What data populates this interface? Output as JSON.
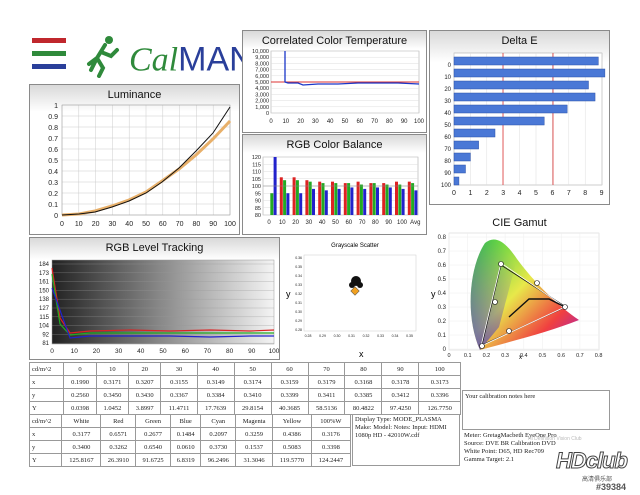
{
  "logo": {
    "text_cal": "Cal",
    "text_man": "MAN",
    "tm": "TM"
  },
  "luminance": {
    "title": "Luminance",
    "y_ticks": [
      "1",
      "0.9",
      "0.8",
      "0.7",
      "0.6",
      "0.5",
      "0.4",
      "0.3",
      "0.2",
      "0.1",
      "0"
    ],
    "x_ticks": [
      "0",
      "10",
      "20",
      "30",
      "40",
      "50",
      "60",
      "70",
      "80",
      "90",
      "100"
    ]
  },
  "cct": {
    "title": "Correlated Color Temperature",
    "y_ticks": [
      "10,000",
      "9,000",
      "8,000",
      "7,000",
      "6,000",
      "5,000",
      "4,000",
      "3,000",
      "2,000",
      "1,000",
      "0"
    ],
    "x_ticks": [
      "0",
      "10",
      "20",
      "30",
      "40",
      "50",
      "60",
      "70",
      "80",
      "90",
      "100"
    ]
  },
  "rgb_balance": {
    "title": "RGB Color Balance",
    "y_ticks": [
      "120",
      "115",
      "110",
      "105",
      "100",
      "95",
      "90",
      "85",
      "80"
    ],
    "x_ticks": [
      "0",
      "10",
      "20",
      "30",
      "40",
      "50",
      "60",
      "70",
      "80",
      "90",
      "100",
      "Avg"
    ]
  },
  "delta_e": {
    "title": "Delta E",
    "y_ticks": [
      "100",
      "90",
      "80",
      "70",
      "60",
      "50",
      "40",
      "30",
      "20",
      "10",
      "0"
    ],
    "x_ticks": [
      "0",
      "1",
      "2",
      "3",
      "4",
      "5",
      "6",
      "7",
      "8",
      "9"
    ]
  },
  "level_tracking": {
    "title": "RGB Level Tracking",
    "y_ticks": [
      "184",
      "173",
      "161",
      "150",
      "138",
      "127",
      "115",
      "104",
      "92",
      "81"
    ],
    "x_ticks": [
      "0",
      "10",
      "20",
      "30",
      "40",
      "50",
      "60",
      "70",
      "80",
      "90",
      "100"
    ]
  },
  "grayscale_scatter": {
    "title": "Grayscale Scatter",
    "x_axis": "x",
    "y_axis": "y",
    "x_ticks": [
      "0.28",
      "0.29",
      "0.30",
      "0.31",
      "0.32",
      "0.33",
      "0.34",
      "0.35"
    ],
    "y_ticks": [
      "0.36",
      "0.35",
      "0.34",
      "0.33",
      "0.32",
      "0.31",
      "0.30",
      "0.29",
      "0.28"
    ]
  },
  "cie_gamut": {
    "title": "CIE Gamut",
    "x_axis": "x",
    "y_axis": "y",
    "y_ticks": [
      "0.8",
      "0.7",
      "0.6",
      "0.5",
      "0.4",
      "0.3",
      "0.2",
      "0.1",
      "0"
    ],
    "x_ticks": [
      "0",
      "0.1",
      "0.2",
      "0.3",
      "0.4",
      "0.5",
      "0.6",
      "0.7",
      "0.8"
    ]
  },
  "table1": {
    "headers": [
      "cd/m^2",
      "0",
      "10",
      "20",
      "30",
      "40",
      "50",
      "60",
      "70",
      "80",
      "90",
      "100"
    ],
    "rows": [
      [
        "x",
        "0.1990",
        "0.3171",
        "0.3207",
        "0.3155",
        "0.3149",
        "0.3174",
        "0.3159",
        "0.3179",
        "0.3168",
        "0.3178",
        "0.3173"
      ],
      [
        "y",
        "0.2560",
        "0.3450",
        "0.3430",
        "0.3367",
        "0.3384",
        "0.3410",
        "0.3399",
        "0.3411",
        "0.3385",
        "0.3412",
        "0.3396"
      ],
      [
        "Y",
        "0.0398",
        "1.0452",
        "3.8997",
        "11.4711",
        "17.7639",
        "29.8154",
        "40.3685",
        "58.5136",
        "80.4822",
        "97.4250",
        "126.7750"
      ]
    ]
  },
  "table2": {
    "headers": [
      "cd/m^2",
      "White",
      "Red",
      "Green",
      "Blue",
      "Cyan",
      "Magenta",
      "Yellow",
      "100%W"
    ],
    "rows": [
      [
        "x",
        "0.3177",
        "0.6571",
        "0.2677",
        "0.1484",
        "0.2097",
        "0.3259",
        "0.4386",
        "0.3176"
      ],
      [
        "y",
        "0.3400",
        "0.3262",
        "0.6540",
        "0.0610",
        "0.3730",
        "0.1537",
        "0.5083",
        "0.3398"
      ],
      [
        "Y",
        "125.8167",
        "26.3910",
        "91.6725",
        "6.8319",
        "96.2496",
        "31.3046",
        "119.5770",
        "124.2447"
      ]
    ]
  },
  "display_info": {
    "line1": "Display Type: MODE_PLASMA",
    "line2": "Make: Model: Notes: Input: HDMI",
    "line3": "1080p HD   -   42010W.cdf"
  },
  "calibration_notes": "Your calibration notes here",
  "meter_info": {
    "line1": "Meter: GretagMacbeth EyeOne Pro",
    "line2": "Source: DVE BR Calibration DVD",
    "line3": "White Point: D65, HD Rec709",
    "line4": "Gamma Target: 2.1"
  },
  "watermark": {
    "brand": "HDclub",
    "sub": "Hi Definition Vision Club",
    "id": "#39384",
    "cn": "高清俱乐部"
  }
}
